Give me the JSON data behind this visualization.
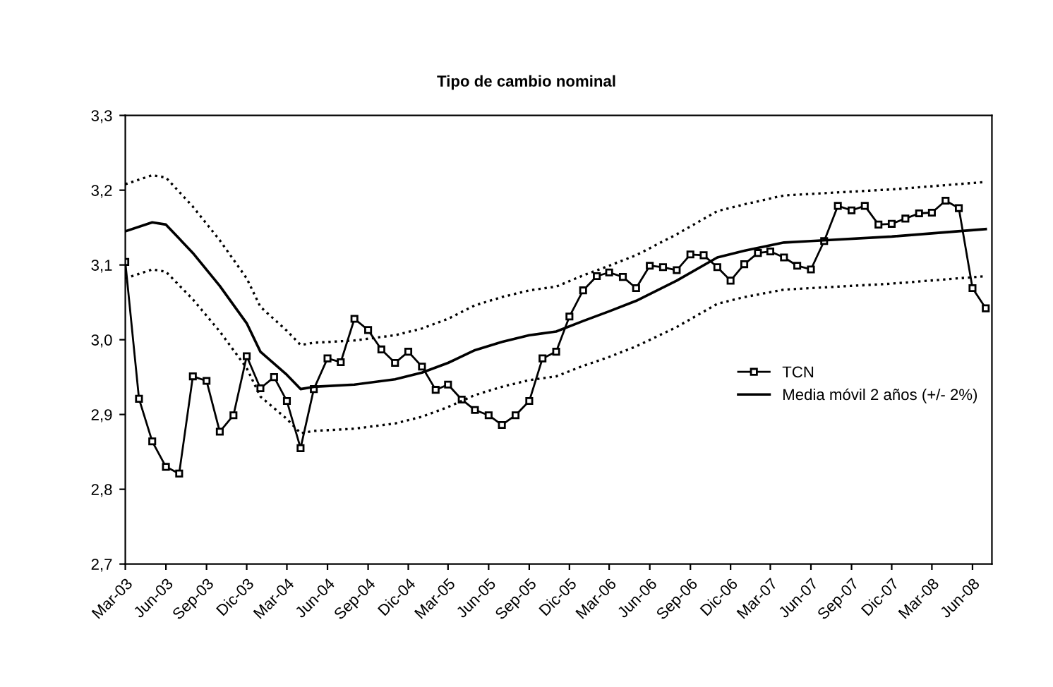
{
  "chart_data": {
    "type": "line",
    "title": "Tipo de cambio nominal",
    "series": [
      {
        "name": "TCN",
        "color": "#000000",
        "marker": "square",
        "line_style": "solid",
        "x": [
          "2003-03",
          "2003-04",
          "2003-05",
          "2003-06",
          "2003-07",
          "2003-08",
          "2003-09",
          "2003-10",
          "2003-11",
          "2003-12",
          "2004-01",
          "2004-02",
          "2004-03",
          "2004-04",
          "2004-05",
          "2004-06",
          "2004-07",
          "2004-08",
          "2004-09",
          "2004-10",
          "2004-11",
          "2004-12",
          "2005-01",
          "2005-02",
          "2005-03",
          "2005-04",
          "2005-05",
          "2005-06",
          "2005-07",
          "2005-08",
          "2005-09",
          "2005-10",
          "2005-11",
          "2005-12",
          "2006-01",
          "2006-02",
          "2006-03",
          "2006-04",
          "2006-05",
          "2006-06",
          "2006-07",
          "2006-08",
          "2006-09",
          "2006-10",
          "2006-11",
          "2006-12",
          "2007-01",
          "2007-02",
          "2007-03",
          "2007-04",
          "2007-05",
          "2007-06",
          "2007-07",
          "2007-08",
          "2007-09",
          "2007-10",
          "2007-11",
          "2007-12",
          "2008-01",
          "2008-02",
          "2008-03",
          "2008-04",
          "2008-05",
          "2008-06",
          "2008-07"
        ],
        "values": [
          3.104,
          2.921,
          2.864,
          2.83,
          2.821,
          2.951,
          2.945,
          2.877,
          2.899,
          2.978,
          2.935,
          2.95,
          2.918,
          2.855,
          2.934,
          2.975,
          2.97,
          3.028,
          3.013,
          2.987,
          2.969,
          2.984,
          2.964,
          2.933,
          2.94,
          2.92,
          2.906,
          2.899,
          2.886,
          2.899,
          2.918,
          2.975,
          2.984,
          3.031,
          3.066,
          3.085,
          3.09,
          3.084,
          3.069,
          3.099,
          3.097,
          3.093,
          3.114,
          3.113,
          3.097,
          3.079,
          3.101,
          3.116,
          3.118,
          3.11,
          3.099,
          3.094,
          3.132,
          3.179,
          3.173,
          3.179,
          3.154,
          3.155,
          3.162,
          3.169,
          3.17,
          3.186,
          3.176,
          3.069,
          3.042
        ]
      },
      {
        "name": "Media móvil 2 años (+/- 2%)",
        "color": "#000000",
        "marker": "none",
        "line_style": "solid",
        "x": [
          "2003-03",
          "2003-05",
          "2003-06",
          "2003-08",
          "2003-10",
          "2003-12",
          "2004-01",
          "2004-03",
          "2004-04",
          "2004-05",
          "2004-08",
          "2004-11",
          "2005-01",
          "2005-03",
          "2005-05",
          "2005-07",
          "2005-09",
          "2005-11",
          "2006-01",
          "2006-03",
          "2006-05",
          "2006-08",
          "2006-11",
          "2007-01",
          "2007-04",
          "2007-06",
          "2007-12",
          "2008-07"
        ],
        "values": [
          3.145,
          3.157,
          3.154,
          3.116,
          3.072,
          3.022,
          2.984,
          2.953,
          2.934,
          2.937,
          2.94,
          2.947,
          2.956,
          2.969,
          2.986,
          2.997,
          3.006,
          3.011,
          3.025,
          3.038,
          3.052,
          3.079,
          3.11,
          3.119,
          3.13,
          3.132,
          3.138,
          3.148
        ]
      },
      {
        "color": "#000000",
        "marker": "none",
        "line_style": "dotted",
        "x": [
          "2003-03",
          "2003-05",
          "2003-06",
          "2003-08",
          "2003-10",
          "2003-12",
          "2004-01",
          "2004-03",
          "2004-04",
          "2004-05",
          "2004-08",
          "2004-11",
          "2005-01",
          "2005-03",
          "2005-05",
          "2005-07",
          "2005-09",
          "2005-11",
          "2006-01",
          "2006-03",
          "2006-05",
          "2006-08",
          "2006-11",
          "2007-01",
          "2007-04",
          "2007-06",
          "2007-12",
          "2008-07"
        ],
        "values": [
          3.208,
          3.22,
          3.217,
          3.178,
          3.133,
          3.082,
          3.044,
          3.012,
          2.993,
          2.996,
          2.999,
          3.006,
          3.015,
          3.028,
          3.046,
          3.057,
          3.066,
          3.071,
          3.086,
          3.099,
          3.113,
          3.141,
          3.172,
          3.181,
          3.193,
          3.195,
          3.201,
          3.211
        ]
      },
      {
        "color": "#000000",
        "marker": "none",
        "line_style": "dotted",
        "x": [
          "2003-03",
          "2003-05",
          "2003-06",
          "2003-08",
          "2003-10",
          "2003-12",
          "2004-01",
          "2004-03",
          "2004-04",
          "2004-05",
          "2004-08",
          "2004-11",
          "2005-01",
          "2005-03",
          "2005-05",
          "2005-07",
          "2005-09",
          "2005-11",
          "2006-01",
          "2006-03",
          "2006-05",
          "2006-08",
          "2006-11",
          "2007-01",
          "2007-04",
          "2007-06",
          "2007-12",
          "2008-07"
        ],
        "values": [
          3.082,
          3.094,
          3.091,
          3.054,
          3.011,
          2.962,
          2.924,
          2.894,
          2.875,
          2.878,
          2.881,
          2.888,
          2.897,
          2.91,
          2.926,
          2.937,
          2.946,
          2.951,
          2.965,
          2.977,
          2.991,
          3.017,
          3.048,
          3.057,
          3.067,
          3.069,
          3.075,
          3.085
        ]
      }
    ],
    "xlim": [
      "2003-03",
      "2008-07-15"
    ],
    "xticks": [
      {
        "value": "2003-03",
        "label": "Mar-03"
      },
      {
        "value": "2003-06",
        "label": "Jun-03"
      },
      {
        "value": "2003-09",
        "label": "Sep-03"
      },
      {
        "value": "2003-12",
        "label": "Dic-03"
      },
      {
        "value": "2004-03",
        "label": "Mar-04"
      },
      {
        "value": "2004-06",
        "label": "Jun-04"
      },
      {
        "value": "2004-09",
        "label": "Sep-04"
      },
      {
        "value": "2004-12",
        "label": "Dic-04"
      },
      {
        "value": "2005-03",
        "label": "Mar-05"
      },
      {
        "value": "2005-06",
        "label": "Jun-05"
      },
      {
        "value": "2005-09",
        "label": "Sep-05"
      },
      {
        "value": "2005-12",
        "label": "Dic-05"
      },
      {
        "value": "2006-03",
        "label": "Mar-06"
      },
      {
        "value": "2006-06",
        "label": "Jun-06"
      },
      {
        "value": "2006-09",
        "label": "Sep-06"
      },
      {
        "value": "2006-12",
        "label": "Dic-06"
      },
      {
        "value": "2007-03",
        "label": "Mar-07"
      },
      {
        "value": "2007-06",
        "label": "Jun-07"
      },
      {
        "value": "2007-09",
        "label": "Sep-07"
      },
      {
        "value": "2007-12",
        "label": "Dic-07"
      },
      {
        "value": "2008-03",
        "label": "Mar-08"
      },
      {
        "value": "2008-06",
        "label": "Jun-08"
      }
    ],
    "ylim": [
      2.7,
      3.3
    ],
    "yticks": [
      {
        "value": 2.7,
        "label": "2,7"
      },
      {
        "value": 2.8,
        "label": "2,8"
      },
      {
        "value": 2.9,
        "label": "2,9"
      },
      {
        "value": 3.0,
        "label": "3,0"
      },
      {
        "value": 3.1,
        "label": "3,1"
      },
      {
        "value": 3.2,
        "label": "3,2"
      },
      {
        "value": 3.3,
        "label": "3,3"
      }
    ],
    "grid": false,
    "legend": "center right"
  }
}
